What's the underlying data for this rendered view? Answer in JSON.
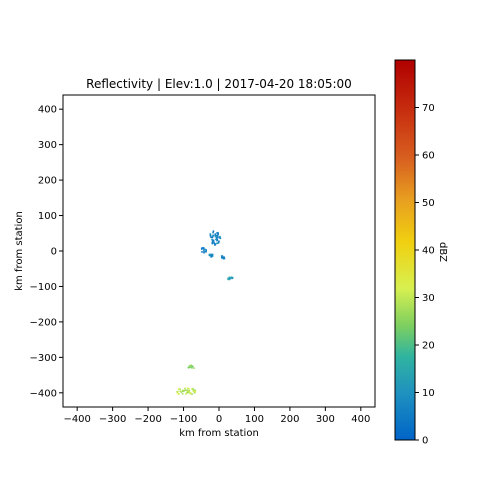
{
  "chart_data": {
    "type": "heatmap",
    "title": "Reflectivity | Elev:1.0 | 2017-04-20 18:05:00",
    "xlabel": "km from station",
    "ylabel": "km from station",
    "xlim": [
      -440,
      440
    ],
    "ylim": [
      -440,
      440
    ],
    "xticks": [
      -400,
      -300,
      -200,
      -100,
      0,
      100,
      200,
      300,
      400
    ],
    "yticks": [
      -400,
      -300,
      -200,
      -100,
      0,
      100,
      200,
      300,
      400
    ],
    "grid": false,
    "colorbar": {
      "label": "dBZ",
      "range": [
        0,
        80
      ],
      "ticks": [
        0,
        10,
        20,
        30,
        40,
        50,
        60,
        70
      ],
      "colormap": "NWS reflectivity (blue-green-yellow-orange-red)"
    },
    "echo_regions": [
      {
        "x": -15,
        "y": 40,
        "rx": 14,
        "ry": 22,
        "dbz": 5
      },
      {
        "x": -45,
        "y": 5,
        "rx": 8,
        "ry": 8,
        "dbz": 6
      },
      {
        "x": -5,
        "y": 35,
        "rx": 8,
        "ry": 12,
        "dbz": 9
      },
      {
        "x": -25,
        "y": -10,
        "rx": 6,
        "ry": 5,
        "dbz": 8
      },
      {
        "x": 10,
        "y": -15,
        "rx": 6,
        "ry": 5,
        "dbz": 7
      },
      {
        "x": 30,
        "y": -75,
        "rx": 8,
        "ry": 4,
        "dbz": 12
      },
      {
        "x": -80,
        "y": -325,
        "rx": 10,
        "ry": 5,
        "dbz": 24
      },
      {
        "x": -95,
        "y": -395,
        "rx": 28,
        "ry": 12,
        "dbz": 30
      }
    ]
  }
}
